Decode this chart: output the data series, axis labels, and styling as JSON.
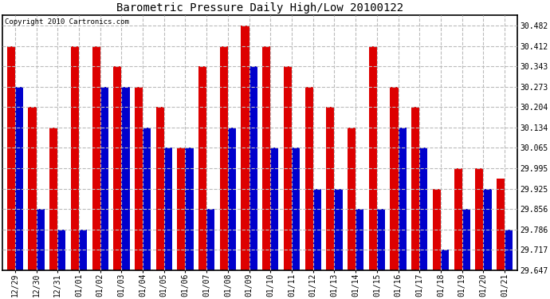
{
  "title": "Barometric Pressure Daily High/Low 20100122",
  "copyright": "Copyright 2010 Cartronics.com",
  "labels": [
    "12/29",
    "12/30",
    "12/31",
    "01/01",
    "01/02",
    "01/03",
    "01/04",
    "01/05",
    "01/06",
    "01/07",
    "01/08",
    "01/09",
    "01/10",
    "01/11",
    "01/12",
    "01/13",
    "01/14",
    "01/15",
    "01/16",
    "01/17",
    "01/18",
    "01/19",
    "01/20",
    "01/21"
  ],
  "highs": [
    30.412,
    30.204,
    30.134,
    30.412,
    30.412,
    30.343,
    30.273,
    30.204,
    30.065,
    30.343,
    30.412,
    30.482,
    30.412,
    30.343,
    30.273,
    30.204,
    30.134,
    30.412,
    30.273,
    30.204,
    29.925,
    29.995,
    29.995,
    29.96
  ],
  "lows": [
    30.273,
    29.856,
    29.786,
    29.786,
    30.273,
    30.273,
    30.134,
    30.065,
    30.065,
    29.856,
    30.134,
    30.343,
    30.065,
    30.065,
    29.925,
    29.925,
    29.856,
    29.856,
    30.134,
    30.065,
    29.717,
    29.856,
    29.925,
    29.786
  ],
  "high_color": "#dd0000",
  "low_color": "#0000cc",
  "background_color": "#ffffff",
  "grid_color": "#bbbbbb",
  "yticks": [
    29.647,
    29.717,
    29.786,
    29.856,
    29.925,
    29.995,
    30.065,
    30.134,
    30.204,
    30.273,
    30.343,
    30.412,
    30.482
  ],
  "ymin": 29.647,
  "ymax": 30.517,
  "bar_width": 0.38
}
